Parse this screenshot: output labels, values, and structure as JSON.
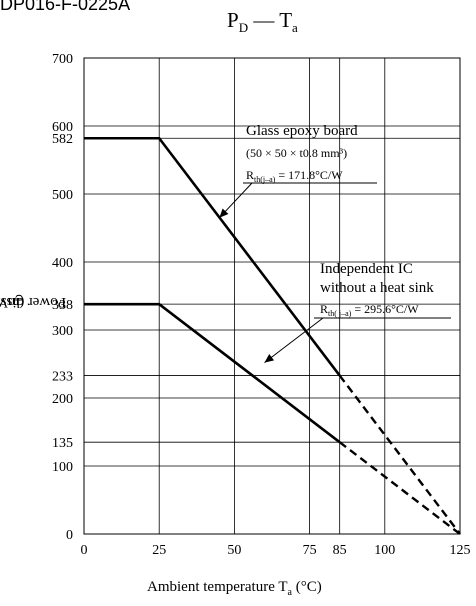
{
  "header": {
    "doc_id": "DP016-F-0225A"
  },
  "chart_data": {
    "type": "line",
    "title": "P",
    "title_sub": "D",
    "title_mid": " — T",
    "title_sub2": "a",
    "xlabel": "Ambient temperature  T",
    "xlabel_sub": "a",
    "xlabel_unit": "  (°C)",
    "ylabel": "Power dissipation  P",
    "ylabel_sub": "D",
    "ylabel_unit": "  (mW)",
    "xlim": [
      0,
      125
    ],
    "ylim": [
      0,
      700
    ],
    "x_ticks": [
      0,
      25,
      50,
      75,
      85,
      100,
      125
    ],
    "y_ticks": [
      0,
      100,
      135,
      200,
      233,
      300,
      338,
      400,
      500,
      582,
      600,
      700
    ],
    "grid": true,
    "series": [
      {
        "name": "Glass epoxy board",
        "points": [
          [
            0,
            582
          ],
          [
            25,
            582
          ],
          [
            85,
            233
          ]
        ],
        "dashed_points": [
          [
            85,
            233
          ],
          [
            125,
            0
          ]
        ]
      },
      {
        "name": "Independent IC",
        "points": [
          [
            0,
            338
          ],
          [
            25,
            338
          ],
          [
            85,
            135
          ]
        ],
        "dashed_points": [
          [
            85,
            135
          ],
          [
            125,
            0
          ]
        ]
      }
    ],
    "annotations": [
      {
        "lines": [
          "Glass epoxy board",
          "(50 × 50 × t0.8 mm³)"
        ],
        "rth_main": "R",
        "rth_sub": "th(j–a)",
        "rth_value": " = 171.8°C/W",
        "leader_to": [
          45,
          465
        ]
      },
      {
        "lines": [
          "Independent IC",
          "without a heat sink"
        ],
        "rth_main": "R",
        "rth_sub": "th( j–a)",
        "rth_value": " = 295.6°C/W",
        "leader_to": [
          60,
          252
        ]
      }
    ]
  }
}
